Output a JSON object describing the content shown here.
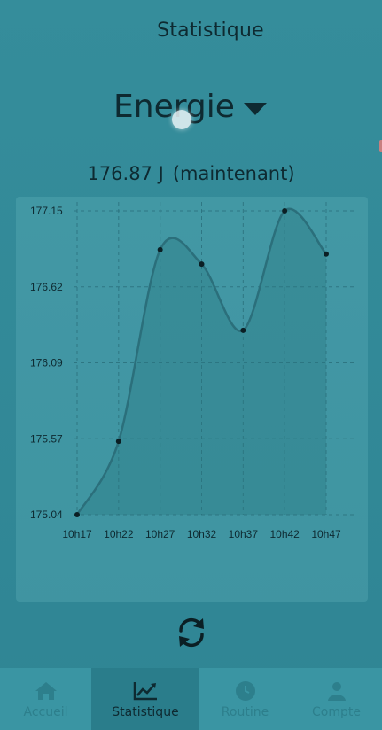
{
  "header": {
    "title": "Statistique"
  },
  "selector": {
    "label": "Energie"
  },
  "current": {
    "value": "176.87 J",
    "suffix": "(maintenant)"
  },
  "chart_data": {
    "type": "line",
    "x": [
      "10h17",
      "10h22",
      "10h27",
      "10h32",
      "10h37",
      "10h42",
      "10h47"
    ],
    "series": [
      {
        "values": [
          175.04,
          175.55,
          176.88,
          176.78,
          176.32,
          177.15,
          176.85
        ]
      }
    ],
    "yticks": [
      "177.15",
      "176.62",
      "176.09",
      "175.57",
      "175.04"
    ],
    "ylim": [
      175.04,
      177.15
    ],
    "grid": true,
    "title": "",
    "xlabel": "",
    "ylabel": "",
    "colors": {
      "line": "#2b6f7b",
      "point": "#0b1f24",
      "fill": "rgba(40,120,130,0.35)",
      "grid": "#2a6f7b",
      "label": "#0e2a31"
    }
  },
  "nav": {
    "items": [
      {
        "label": "Accueil",
        "icon": "home-icon"
      },
      {
        "label": "Statistique",
        "icon": "chart-line-icon"
      },
      {
        "label": "Routine",
        "icon": "clock-icon"
      },
      {
        "label": "Compte",
        "icon": "user-icon"
      }
    ]
  }
}
